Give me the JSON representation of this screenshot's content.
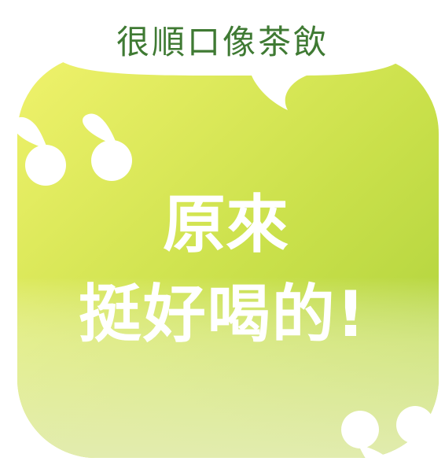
{
  "card": {
    "caption": "很順口像茶飲",
    "headline_line1": "原來",
    "headline_line2": "挺好喝的!"
  },
  "colors": {
    "caption_text": "#3f7a33",
    "gradient_top_left": "#eef06a",
    "gradient_mid_right": "#b2d43c",
    "gradient_bottom": "#e2ecb0",
    "quote_marks": "#ffffff",
    "headline_text": "#ffffff"
  },
  "icons": {
    "open_quote": "left-double-quote-icon",
    "close_quote": "right-double-quote-icon"
  }
}
